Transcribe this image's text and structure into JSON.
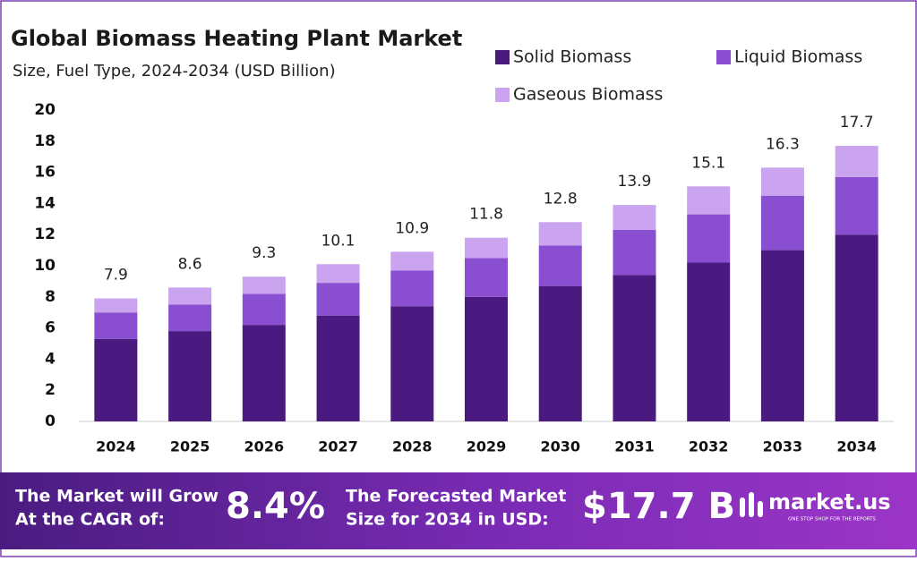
{
  "chart_data": {
    "type": "stacked-bar",
    "title": "Global Biomass Heating Plant Market",
    "subtitle": "Size, Fuel Type, 2024-2034 (USD Billion)",
    "categories": [
      "2024",
      "2025",
      "2026",
      "2027",
      "2028",
      "2029",
      "2030",
      "2031",
      "2032",
      "2033",
      "2034"
    ],
    "series": [
      {
        "name": "Solid Biomass",
        "color": "#4b1a80",
        "values": [
          5.3,
          5.8,
          6.2,
          6.8,
          7.4,
          8.0,
          8.7,
          9.4,
          10.2,
          11.0,
          12.0
        ]
      },
      {
        "name": "Liquid Biomass",
        "color": "#8a4fd0",
        "values": [
          1.7,
          1.7,
          2.0,
          2.1,
          2.3,
          2.5,
          2.6,
          2.9,
          3.1,
          3.5,
          3.7
        ]
      },
      {
        "name": "Gaseous Biomass",
        "color": "#caa4ee",
        "values": [
          0.9,
          1.1,
          1.1,
          1.2,
          1.2,
          1.3,
          1.5,
          1.6,
          1.8,
          1.8,
          2.0
        ]
      }
    ],
    "totals": [
      7.9,
      8.6,
      9.3,
      10.1,
      10.9,
      11.8,
      12.8,
      13.9,
      15.1,
      16.3,
      17.7
    ],
    "ylim": [
      0,
      20
    ],
    "yticks": [
      0,
      2,
      4,
      6,
      8,
      10,
      12,
      14,
      16,
      18,
      20
    ],
    "grid": false
  },
  "footer": {
    "cagr_label": [
      "The Market will Grow",
      "At the CAGR of:"
    ],
    "cagr_value": "8.4%",
    "forecast_label": [
      "The Forecasted Market",
      "Size for 2034 in USD:"
    ],
    "forecast_value": "$17.7 B",
    "brand": "market.us",
    "tagline": "ONE STOP SHOP FOR THE REPORTS"
  }
}
